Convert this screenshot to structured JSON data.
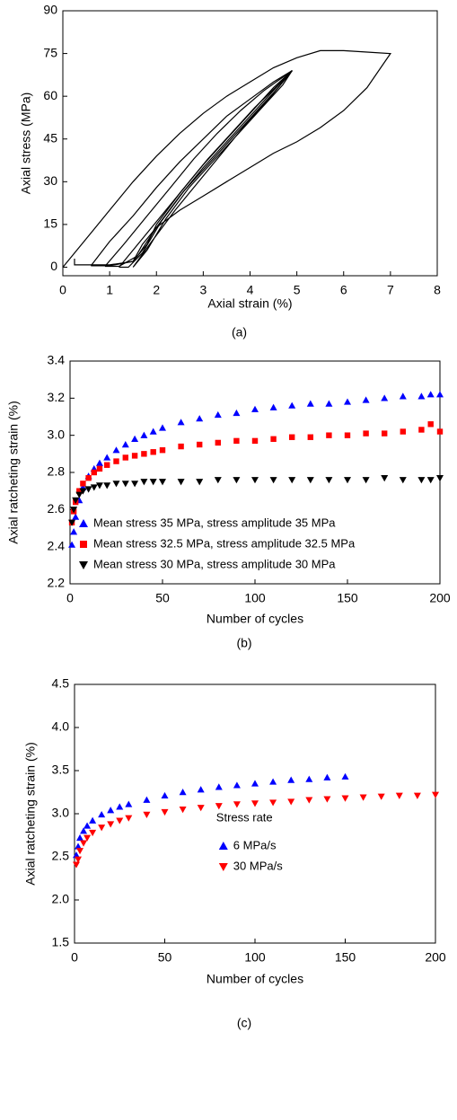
{
  "chart_data": [
    {
      "type": "line",
      "caption": "(a)",
      "x_label": "Axial strain (%)",
      "y_label": "Axial stress (MPa)",
      "xlim": [
        0,
        8
      ],
      "ylim": [
        -3,
        90
      ],
      "xticks": [
        0,
        1,
        2,
        3,
        4,
        5,
        6,
        7,
        8
      ],
      "yticks": [
        0,
        15,
        30,
        45,
        60,
        75,
        90
      ],
      "series": [
        {
          "color": "#000000",
          "x": [
            0,
            0.5,
            1,
            1.5,
            2,
            2.5,
            3,
            3.5,
            4,
            4.5,
            5,
            5.5,
            6,
            6.5,
            7,
            6.5,
            6,
            5.5,
            5,
            4.5,
            4,
            3.5,
            3,
            2.5,
            2,
            1.7,
            1.5,
            1.0,
            0.5,
            0.25,
            0.25
          ],
          "values": [
            0,
            10,
            20,
            30,
            39,
            47,
            54,
            60,
            65,
            70,
            73.5,
            76,
            76,
            75.5,
            75,
            63,
            55,
            49,
            44,
            40,
            35,
            30,
            25,
            20,
            14,
            8,
            2,
            0.8,
            0.8,
            0.8,
            3
          ]
        },
        {
          "color": "#000000",
          "x": [
            0.6,
            1,
            1.5,
            2,
            2.5,
            3,
            3.5,
            4,
            4.5,
            4.9,
            4.5,
            4,
            3.5,
            3,
            2.5,
            2,
            1.8,
            1.5,
            1.0,
            0.6
          ],
          "values": [
            0.5,
            9,
            18,
            28,
            37,
            45,
            53,
            59,
            65,
            69,
            63,
            54,
            45,
            36,
            26,
            15,
            8,
            2,
            0.5,
            0.5
          ]
        },
        {
          "color": "#000000",
          "x": [
            0.9,
            1.3,
            1.8,
            2.3,
            2.8,
            3.3,
            3.8,
            4.3,
            4.9,
            4.5,
            4,
            3.5,
            3,
            2.5,
            2,
            1.6,
            1.2,
            0.9
          ],
          "values": [
            0.3,
            8,
            18,
            28,
            38,
            47,
            55,
            62,
            69,
            62,
            53,
            44,
            35,
            25,
            14,
            4,
            0.3,
            0.3
          ]
        },
        {
          "color": "#000000",
          "x": [
            1.2,
            1.6,
            2.1,
            2.6,
            3.1,
            3.6,
            4.1,
            4.6,
            4.9,
            4.6,
            4.1,
            3.6,
            3.1,
            2.6,
            2.1,
            1.7,
            1.4,
            1.2
          ],
          "values": [
            0,
            8,
            18,
            28,
            38,
            47,
            56,
            64,
            69,
            63,
            54,
            45,
            36,
            27,
            16,
            5,
            0,
            0
          ]
        },
        {
          "color": "#000000",
          "x": [
            1.5,
            1.9,
            2.4,
            2.9,
            3.4,
            3.9,
            4.4,
            4.9,
            4.7,
            4.2,
            3.7,
            3.2,
            2.7,
            2.2,
            1.8,
            1.5
          ],
          "values": [
            0,
            9,
            20,
            30,
            40,
            50,
            59,
            69,
            64,
            55,
            46,
            37,
            28,
            17,
            6,
            0
          ]
        }
      ]
    },
    {
      "type": "scatter",
      "caption": "(b)",
      "x_label": "Number of cycles",
      "y_label": "Axial ratcheting strain (%)",
      "xlim": [
        0,
        200
      ],
      "ylim": [
        2.2,
        3.4
      ],
      "xticks": [
        0,
        50,
        100,
        150,
        200
      ],
      "yticks": [
        2.2,
        2.4,
        2.6,
        2.8,
        {
          "value": 3,
          "label": "3.0"
        },
        3.2,
        3.4
      ],
      "legend": "lower left",
      "series": [
        {
          "name": "Mean stress 35 MPa, stress amplitude 35 MPa",
          "color": "#0000ff",
          "marker": "triangle-up",
          "x": [
            1,
            2,
            3,
            5,
            7,
            10,
            13,
            16,
            20,
            25,
            30,
            35,
            40,
            45,
            50,
            60,
            70,
            80,
            90,
            100,
            110,
            120,
            130,
            140,
            150,
            160,
            170,
            180,
            190,
            195,
            200
          ],
          "values": [
            2.41,
            2.48,
            2.56,
            2.65,
            2.72,
            2.78,
            2.82,
            2.85,
            2.88,
            2.92,
            2.95,
            2.98,
            3.0,
            3.02,
            3.04,
            3.07,
            3.09,
            3.11,
            3.12,
            3.14,
            3.15,
            3.16,
            3.17,
            3.17,
            3.18,
            3.19,
            3.2,
            3.21,
            3.21,
            3.22,
            3.22
          ]
        },
        {
          "name": "Mean stress 32.5 MPa, stress amplitude 32.5 MPa",
          "color": "#ff0000",
          "marker": "square",
          "x": [
            1,
            2,
            3,
            5,
            7,
            10,
            13,
            16,
            20,
            25,
            30,
            35,
            40,
            45,
            50,
            60,
            70,
            80,
            90,
            100,
            110,
            120,
            130,
            140,
            150,
            160,
            170,
            180,
            190,
            195,
            200
          ],
          "values": [
            2.53,
            2.59,
            2.64,
            2.7,
            2.74,
            2.77,
            2.8,
            2.82,
            2.84,
            2.86,
            2.88,
            2.89,
            2.9,
            2.91,
            2.92,
            2.94,
            2.95,
            2.96,
            2.97,
            2.97,
            2.98,
            2.99,
            2.99,
            3.0,
            3.0,
            3.01,
            3.01,
            3.02,
            3.03,
            3.06,
            3.02
          ]
        },
        {
          "name": "Mean stress 30 MPa, stress amplitude 30 MPa",
          "color": "#000000",
          "marker": "triangle-down",
          "x": [
            1,
            2,
            3,
            5,
            7,
            10,
            13,
            16,
            20,
            25,
            30,
            35,
            40,
            45,
            50,
            60,
            70,
            80,
            90,
            100,
            110,
            120,
            130,
            140,
            150,
            160,
            170,
            180,
            190,
            195,
            200
          ],
          "values": [
            2.53,
            2.6,
            2.65,
            2.68,
            2.7,
            2.71,
            2.72,
            2.73,
            2.73,
            2.74,
            2.74,
            2.74,
            2.75,
            2.75,
            2.75,
            2.75,
            2.75,
            2.76,
            2.76,
            2.76,
            2.76,
            2.76,
            2.76,
            2.76,
            2.76,
            2.76,
            2.77,
            2.76,
            2.76,
            2.76,
            2.77
          ]
        }
      ]
    },
    {
      "type": "scatter",
      "caption": "(c)",
      "x_label": "Number of cycles",
      "y_label": "Axial ratcheting strain (%)",
      "xlim": [
        0,
        200
      ],
      "ylim": [
        1.5,
        4.5
      ],
      "xticks": [
        0,
        50,
        100,
        150,
        200
      ],
      "yticks": [
        1.5,
        {
          "value": 2,
          "label": "2.0"
        },
        2.5,
        {
          "value": 3,
          "label": "3.0"
        },
        3.5,
        {
          "value": 4,
          "label": "4.0"
        },
        4.5
      ],
      "legend": "center",
      "legend_title": "Stress rate",
      "series": [
        {
          "name": "6 MPa/s",
          "color": "#0000ff",
          "marker": "triangle-up",
          "x": [
            1,
            2,
            3,
            5,
            7,
            10,
            15,
            20,
            25,
            30,
            40,
            50,
            60,
            70,
            80,
            90,
            100,
            110,
            120,
            130,
            140,
            150
          ],
          "values": [
            2.52,
            2.62,
            2.72,
            2.8,
            2.86,
            2.92,
            2.99,
            3.04,
            3.08,
            3.11,
            3.16,
            3.21,
            3.25,
            3.28,
            3.31,
            3.33,
            3.35,
            3.37,
            3.39,
            3.4,
            3.42,
            3.43
          ]
        },
        {
          "name": "30 MPa/s",
          "color": "#ff0000",
          "marker": "triangle-down",
          "x": [
            1,
            2,
            3,
            5,
            7,
            10,
            15,
            20,
            25,
            30,
            40,
            50,
            60,
            70,
            80,
            90,
            100,
            110,
            120,
            130,
            140,
            150,
            160,
            170,
            180,
            190,
            200
          ],
          "values": [
            2.41,
            2.47,
            2.57,
            2.66,
            2.72,
            2.78,
            2.84,
            2.88,
            2.92,
            2.95,
            2.99,
            3.02,
            3.05,
            3.07,
            3.09,
            3.11,
            3.12,
            3.13,
            3.14,
            3.16,
            3.17,
            3.18,
            3.19,
            3.2,
            3.21,
            3.21,
            3.22
          ]
        }
      ]
    }
  ]
}
